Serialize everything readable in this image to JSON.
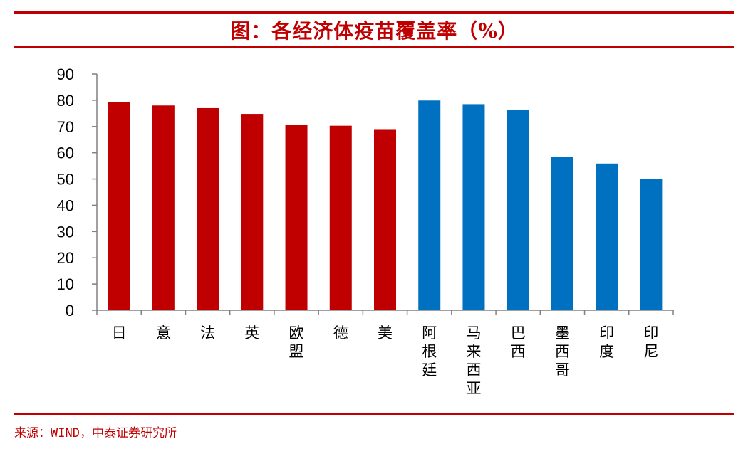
{
  "title": "图：各经济体疫苗覆盖率（%）",
  "source": "来源：WIND，中泰证券研究所",
  "colors": {
    "group1": "#c00000",
    "group2": "#0070c0",
    "axis": "#808080",
    "text": "#000000"
  },
  "chart_data": {
    "type": "bar",
    "title": "图：各经济体疫苗覆盖率（%）",
    "xlabel": "",
    "ylabel": "",
    "ylim": [
      0,
      90
    ],
    "yticks": [
      0,
      10,
      20,
      30,
      40,
      50,
      60,
      70,
      80,
      90
    ],
    "grid": false,
    "categories": [
      "日",
      "意",
      "法",
      "英",
      "欧盟",
      "德",
      "美",
      "阿根廷",
      "马来西亚",
      "巴西",
      "墨西哥",
      "印度",
      "印尼"
    ],
    "values": [
      79.3,
      78.0,
      77.0,
      74.8,
      70.6,
      70.3,
      69.0,
      79.9,
      78.5,
      76.2,
      58.5,
      55.9,
      49.9
    ],
    "bar_colors": [
      "#c00000",
      "#c00000",
      "#c00000",
      "#c00000",
      "#c00000",
      "#c00000",
      "#c00000",
      "#0070c0",
      "#0070c0",
      "#0070c0",
      "#0070c0",
      "#0070c0",
      "#0070c0"
    ]
  }
}
